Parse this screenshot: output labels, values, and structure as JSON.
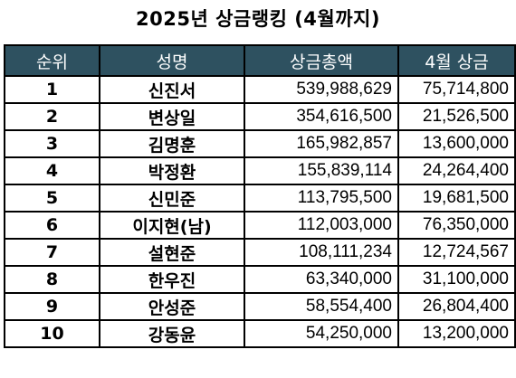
{
  "title": "2025년 상금랭킹 (4월까지)",
  "headers": {
    "rank": "순위",
    "name": "성명",
    "total": "상금총액",
    "april": "4월 상금"
  },
  "rows": [
    {
      "rank": "1",
      "name": "신진서",
      "total": "539,988,629",
      "april": "75,714,800"
    },
    {
      "rank": "2",
      "name": "변상일",
      "total": "354,616,500",
      "april": "21,526,500"
    },
    {
      "rank": "3",
      "name": "김명훈",
      "total": "165,982,857",
      "april": "13,600,000"
    },
    {
      "rank": "4",
      "name": "박정환",
      "total": "155,839,114",
      "april": "24,264,400"
    },
    {
      "rank": "5",
      "name": "신민준",
      "total": "113,795,500",
      "april": "19,681,500"
    },
    {
      "rank": "6",
      "name": "이지현(남)",
      "total": "112,003,000",
      "april": "76,350,000"
    },
    {
      "rank": "7",
      "name": "설현준",
      "total": "108,111,234",
      "april": "12,724,567"
    },
    {
      "rank": "8",
      "name": "한우진",
      "total": "63,340,000",
      "april": "31,100,000"
    },
    {
      "rank": "9",
      "name": "안성준",
      "total": "58,554,400",
      "april": "26,804,400"
    },
    {
      "rank": "10",
      "name": "강동윤",
      "total": "54,250,000",
      "april": "13,200,000"
    }
  ],
  "colors": {
    "header_bg": "#2e5160",
    "header_text": "#ffffff",
    "border": "#000000"
  }
}
